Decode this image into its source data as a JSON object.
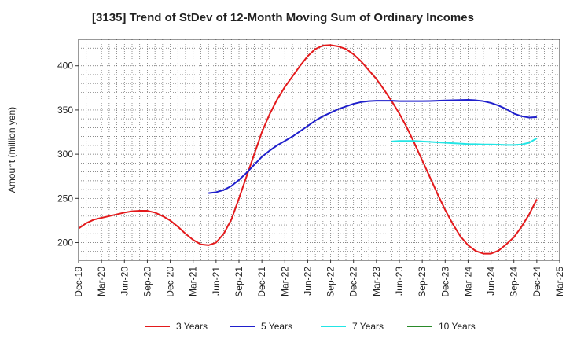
{
  "title": "[3135]  Trend of StDev of 12-Month Moving Sum of Ordinary Incomes",
  "chart_data": {
    "type": "line",
    "title": "[3135]  Trend of StDev of 12-Month Moving Sum of Ordinary Incomes",
    "xlabel": "",
    "ylabel": "Amount (million yen)",
    "ylim": [
      180,
      430
    ],
    "yticks": [
      200,
      250,
      300,
      350,
      400
    ],
    "x_ticks": [
      "Dec-19",
      "Mar-20",
      "Jun-20",
      "Sep-20",
      "Dec-20",
      "Mar-21",
      "Jun-21",
      "Sep-21",
      "Dec-21",
      "Mar-22",
      "Jun-22",
      "Sep-22",
      "Dec-22",
      "Mar-23",
      "Jun-23",
      "Sep-23",
      "Dec-23",
      "Mar-24",
      "Jun-24",
      "Sep-24",
      "Dec-24",
      "Mar-25"
    ],
    "grid": true,
    "legend_position": "bottom",
    "series": [
      {
        "name": "3 Years",
        "color": "#e31a1c",
        "points": [
          [
            "2019-12",
            216
          ],
          [
            "2020-01",
            222
          ],
          [
            "2020-02",
            226
          ],
          [
            "2020-03",
            228
          ],
          [
            "2020-04",
            230
          ],
          [
            "2020-05",
            232
          ],
          [
            "2020-06",
            234
          ],
          [
            "2020-07",
            235.5
          ],
          [
            "2020-08",
            236
          ],
          [
            "2020-09",
            236
          ],
          [
            "2020-10",
            234
          ],
          [
            "2020-11",
            230
          ],
          [
            "2020-12",
            225
          ],
          [
            "2021-01",
            218
          ],
          [
            "2021-02",
            210
          ],
          [
            "2021-03",
            203
          ],
          [
            "2021-04",
            198
          ],
          [
            "2021-05",
            197
          ],
          [
            "2021-06",
            200
          ],
          [
            "2021-07",
            210
          ],
          [
            "2021-08",
            226
          ],
          [
            "2021-09",
            250
          ],
          [
            "2021-10",
            275
          ],
          [
            "2021-11",
            300
          ],
          [
            "2021-12",
            325
          ],
          [
            "2022-01",
            345
          ],
          [
            "2022-02",
            362
          ],
          [
            "2022-03",
            376
          ],
          [
            "2022-04",
            388
          ],
          [
            "2022-05",
            400
          ],
          [
            "2022-06",
            411
          ],
          [
            "2022-07",
            419
          ],
          [
            "2022-08",
            423
          ],
          [
            "2022-09",
            423.5
          ],
          [
            "2022-10",
            422
          ],
          [
            "2022-11",
            419
          ],
          [
            "2022-12",
            413
          ],
          [
            "2023-01",
            405
          ],
          [
            "2023-02",
            395
          ],
          [
            "2023-03",
            385
          ],
          [
            "2023-04",
            373
          ],
          [
            "2023-05",
            360
          ],
          [
            "2023-06",
            346
          ],
          [
            "2023-07",
            330
          ],
          [
            "2023-08",
            312
          ],
          [
            "2023-09",
            293
          ],
          [
            "2023-10",
            274
          ],
          [
            "2023-11",
            255
          ],
          [
            "2023-12",
            237
          ],
          [
            "2024-01",
            221
          ],
          [
            "2024-02",
            207
          ],
          [
            "2024-03",
            197
          ],
          [
            "2024-04",
            190.5
          ],
          [
            "2024-05",
            187.5
          ],
          [
            "2024-06",
            187.5
          ],
          [
            "2024-07",
            191
          ],
          [
            "2024-08",
            198
          ],
          [
            "2024-09",
            206
          ],
          [
            "2024-10",
            218
          ],
          [
            "2024-11",
            232
          ],
          [
            "2024-12",
            249
          ]
        ]
      },
      {
        "name": "5 Years",
        "color": "#1f1fcc",
        "points": [
          [
            "2021-05",
            256
          ],
          [
            "2021-06",
            257
          ],
          [
            "2021-07",
            259.5
          ],
          [
            "2021-08",
            264
          ],
          [
            "2021-09",
            271
          ],
          [
            "2021-10",
            279
          ],
          [
            "2021-11",
            288
          ],
          [
            "2021-12",
            297
          ],
          [
            "2022-01",
            304
          ],
          [
            "2022-02",
            310
          ],
          [
            "2022-03",
            315
          ],
          [
            "2022-04",
            320
          ],
          [
            "2022-05",
            326
          ],
          [
            "2022-06",
            332
          ],
          [
            "2022-07",
            338
          ],
          [
            "2022-08",
            343
          ],
          [
            "2022-09",
            347
          ],
          [
            "2022-10",
            351
          ],
          [
            "2022-11",
            354
          ],
          [
            "2022-12",
            357
          ],
          [
            "2023-01",
            359
          ],
          [
            "2023-02",
            360
          ],
          [
            "2023-03",
            360.5
          ],
          [
            "2023-04",
            360.5
          ],
          [
            "2023-05",
            360.5
          ],
          [
            "2023-06",
            360
          ],
          [
            "2023-07",
            360
          ],
          [
            "2023-08",
            360
          ],
          [
            "2023-09",
            360
          ],
          [
            "2023-10",
            360.2
          ],
          [
            "2023-11",
            360.5
          ],
          [
            "2023-12",
            360.8
          ],
          [
            "2024-01",
            361
          ],
          [
            "2024-02",
            361.3
          ],
          [
            "2024-03",
            361.5
          ],
          [
            "2024-04",
            361
          ],
          [
            "2024-05",
            360
          ],
          [
            "2024-06",
            358
          ],
          [
            "2024-07",
            355
          ],
          [
            "2024-08",
            351
          ],
          [
            "2024-09",
            346
          ],
          [
            "2024-10",
            343
          ],
          [
            "2024-11",
            341.5
          ],
          [
            "2024-12",
            342
          ]
        ]
      },
      {
        "name": "7 Years",
        "color": "#22e5e5",
        "points": [
          [
            "2023-05",
            314.5
          ],
          [
            "2023-06",
            315
          ],
          [
            "2023-07",
            315
          ],
          [
            "2023-08",
            315
          ],
          [
            "2023-09",
            314.5
          ],
          [
            "2023-10",
            314
          ],
          [
            "2023-11",
            313.5
          ],
          [
            "2023-12",
            313
          ],
          [
            "2024-01",
            312.5
          ],
          [
            "2024-02",
            312
          ],
          [
            "2024-03",
            311.5
          ],
          [
            "2024-04",
            311.3
          ],
          [
            "2024-05",
            311
          ],
          [
            "2024-06",
            311
          ],
          [
            "2024-07",
            310.8
          ],
          [
            "2024-08",
            310.5
          ],
          [
            "2024-09",
            310.5
          ],
          [
            "2024-10",
            311
          ],
          [
            "2024-11",
            313
          ],
          [
            "2024-12",
            318
          ]
        ]
      },
      {
        "name": "10 Years",
        "color": "#2a8a2a",
        "points": []
      }
    ]
  }
}
